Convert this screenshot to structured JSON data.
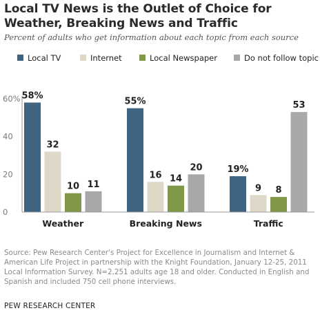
{
  "title": "Local TV News is the Outlet of Choice for Weather, Breaking News and Traffic",
  "subtitle": "Percent of adults who get information about each topic from each source",
  "source": "Source: Pew Research Center's Project for Excellence in Journalism and Internet & American Life Project in partnership with the Knight Foundation, January 12-25, 2011 Local Information Survey. N=2,251 adults age 18 and older. Conducted in English and Spanish and included 750 cell phone interviews.",
  "footer": "PEW RESEARCH CENTER",
  "chart_data": {
    "type": "bar",
    "categories": [
      "Weather",
      "Breaking News",
      "Traffic"
    ],
    "series": [
      {
        "name": "Local TV",
        "color": "#3f6482",
        "values": [
          58,
          55,
          19
        ],
        "labels": [
          "58%",
          "55%",
          "19%"
        ]
      },
      {
        "name": "Internet",
        "color": "#ddd8c7",
        "values": [
          32,
          16,
          9
        ],
        "labels": [
          "32",
          "16",
          "9"
        ]
      },
      {
        "name": "Local Newspaper",
        "color": "#7f9746",
        "values": [
          10,
          14,
          8
        ],
        "labels": [
          "10",
          "14",
          "8"
        ]
      },
      {
        "name": "Do not follow topic",
        "color": "#a8a8aa",
        "values": [
          11,
          20,
          53
        ],
        "labels": [
          "11",
          "20",
          "53"
        ]
      }
    ],
    "yticks": [
      0,
      20,
      40,
      "60%"
    ],
    "ylim": [
      0,
      60
    ],
    "legend_position": "top",
    "grid": false
  }
}
